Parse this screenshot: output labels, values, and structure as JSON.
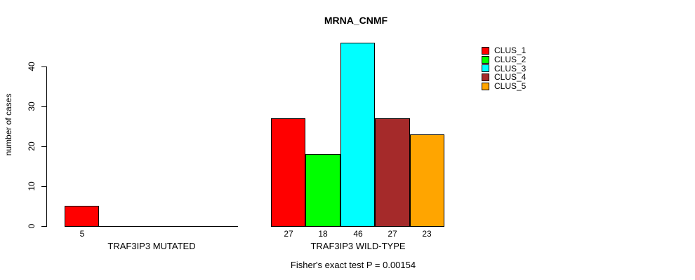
{
  "chart_data": {
    "type": "bar",
    "title": "MRNA_CNMF",
    "ylabel": "number of cases",
    "footnote": "Fisher's exact test P = 0.00154",
    "yticks": [
      0,
      10,
      20,
      30,
      40
    ],
    "ylim": [
      0,
      46
    ],
    "grid": false,
    "legend_position": "top-right",
    "series": [
      {
        "name": "CLUS_1",
        "color": "#FF0000"
      },
      {
        "name": "CLUS_2",
        "color": "#00FF00"
      },
      {
        "name": "CLUS_3",
        "color": "#00FFFF"
      },
      {
        "name": "CLUS_4",
        "color": "#A52A2A"
      },
      {
        "name": "CLUS_5",
        "color": "#FFA500"
      }
    ],
    "groups": [
      {
        "label": "TRAF3IP3 MUTATED",
        "values": [
          5,
          0,
          0,
          0,
          0
        ]
      },
      {
        "label": "TRAF3IP3 WILD-TYPE",
        "values": [
          27,
          18,
          46,
          27,
          23
        ]
      }
    ]
  }
}
